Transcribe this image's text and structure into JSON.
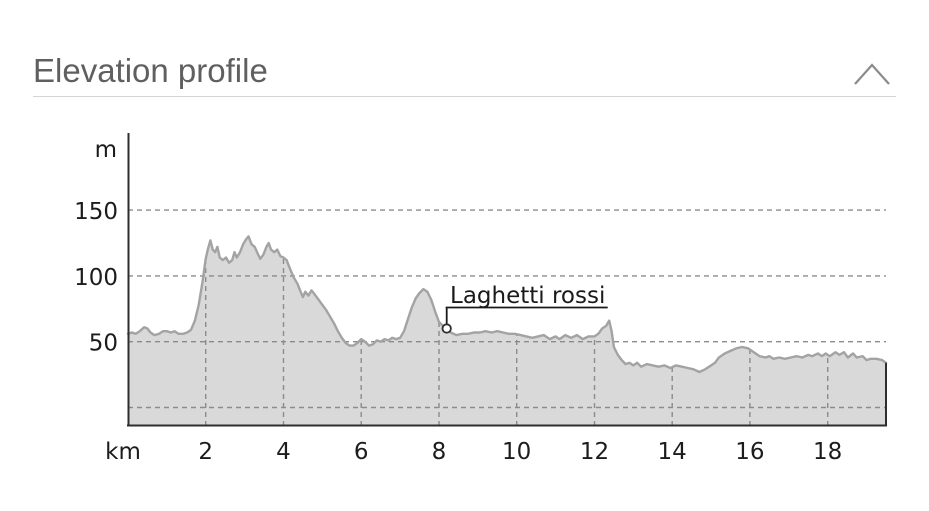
{
  "panel": {
    "title": "Elevation profile",
    "collapse_icon": "chevron-up"
  },
  "chart_data": {
    "type": "area",
    "title": "Elevation profile",
    "xlabel": "km",
    "ylabel": "m",
    "xlim": [
      0,
      19.5
    ],
    "ylim_m": [
      -14,
      208
    ],
    "x_ticks": [
      2,
      4,
      6,
      8,
      10,
      12,
      14,
      16,
      18
    ],
    "y_ticks": [
      50,
      100,
      150
    ],
    "grid": "dashed",
    "legend": "none",
    "annotation": {
      "label": "Laghetti rossi",
      "km": 8.2,
      "m": 60
    },
    "series": [
      {
        "name": "elevation",
        "points": [
          [
            0,
            56
          ],
          [
            0.1,
            57
          ],
          [
            0.2,
            56
          ],
          [
            0.3,
            58
          ],
          [
            0.42,
            61
          ],
          [
            0.5,
            60
          ],
          [
            0.58,
            57
          ],
          [
            0.68,
            55
          ],
          [
            0.8,
            56
          ],
          [
            0.9,
            58
          ],
          [
            1.0,
            58
          ],
          [
            1.1,
            57
          ],
          [
            1.2,
            58
          ],
          [
            1.3,
            56
          ],
          [
            1.42,
            56
          ],
          [
            1.52,
            57
          ],
          [
            1.62,
            59
          ],
          [
            1.72,
            66
          ],
          [
            1.82,
            78
          ],
          [
            1.92,
            96
          ],
          [
            2.0,
            113
          ],
          [
            2.06,
            121
          ],
          [
            2.12,
            127
          ],
          [
            2.18,
            120
          ],
          [
            2.24,
            118
          ],
          [
            2.3,
            122
          ],
          [
            2.36,
            114
          ],
          [
            2.44,
            112
          ],
          [
            2.52,
            114
          ],
          [
            2.6,
            110
          ],
          [
            2.68,
            112
          ],
          [
            2.74,
            118
          ],
          [
            2.8,
            114
          ],
          [
            2.88,
            118
          ],
          [
            2.96,
            124
          ],
          [
            3.04,
            128
          ],
          [
            3.1,
            130
          ],
          [
            3.18,
            124
          ],
          [
            3.26,
            122
          ],
          [
            3.32,
            118
          ],
          [
            3.4,
            113
          ],
          [
            3.48,
            116
          ],
          [
            3.56,
            122
          ],
          [
            3.62,
            125
          ],
          [
            3.68,
            120
          ],
          [
            3.76,
            118
          ],
          [
            3.84,
            120
          ],
          [
            3.92,
            115
          ],
          [
            4.0,
            114
          ],
          [
            4.08,
            112
          ],
          [
            4.16,
            106
          ],
          [
            4.26,
            99
          ],
          [
            4.36,
            94
          ],
          [
            4.44,
            88
          ],
          [
            4.5,
            84
          ],
          [
            4.56,
            88
          ],
          [
            4.64,
            85
          ],
          [
            4.72,
            89
          ],
          [
            4.8,
            86
          ],
          [
            4.9,
            82
          ],
          [
            5.0,
            78
          ],
          [
            5.1,
            74
          ],
          [
            5.2,
            69
          ],
          [
            5.3,
            64
          ],
          [
            5.4,
            58
          ],
          [
            5.5,
            53
          ],
          [
            5.6,
            49
          ],
          [
            5.7,
            47
          ],
          [
            5.8,
            47
          ],
          [
            5.9,
            49
          ],
          [
            6.0,
            52
          ],
          [
            6.1,
            50
          ],
          [
            6.2,
            47
          ],
          [
            6.3,
            48
          ],
          [
            6.4,
            51
          ],
          [
            6.5,
            50
          ],
          [
            6.6,
            52
          ],
          [
            6.7,
            51
          ],
          [
            6.8,
            53
          ],
          [
            6.9,
            52
          ],
          [
            7.0,
            53
          ],
          [
            7.1,
            58
          ],
          [
            7.2,
            67
          ],
          [
            7.3,
            76
          ],
          [
            7.4,
            83
          ],
          [
            7.5,
            87
          ],
          [
            7.6,
            90
          ],
          [
            7.7,
            88
          ],
          [
            7.8,
            82
          ],
          [
            7.9,
            73
          ],
          [
            8.0,
            65
          ],
          [
            8.1,
            62
          ],
          [
            8.2,
            60
          ],
          [
            8.3,
            57
          ],
          [
            8.45,
            55
          ],
          [
            8.6,
            56
          ],
          [
            8.75,
            56
          ],
          [
            8.9,
            57
          ],
          [
            9.05,
            57
          ],
          [
            9.2,
            58
          ],
          [
            9.35,
            57
          ],
          [
            9.5,
            58
          ],
          [
            9.65,
            57
          ],
          [
            9.8,
            56
          ],
          [
            9.95,
            56
          ],
          [
            10.1,
            55
          ],
          [
            10.25,
            54
          ],
          [
            10.4,
            53
          ],
          [
            10.55,
            54
          ],
          [
            10.7,
            55
          ],
          [
            10.85,
            52
          ],
          [
            11.0,
            54
          ],
          [
            11.1,
            52
          ],
          [
            11.25,
            55
          ],
          [
            11.4,
            53
          ],
          [
            11.55,
            55
          ],
          [
            11.7,
            52
          ],
          [
            11.85,
            54
          ],
          [
            12.0,
            54
          ],
          [
            12.1,
            56
          ],
          [
            12.2,
            60
          ],
          [
            12.3,
            62
          ],
          [
            12.38,
            66
          ],
          [
            12.44,
            58
          ],
          [
            12.5,
            46
          ],
          [
            12.6,
            40
          ],
          [
            12.7,
            36
          ],
          [
            12.8,
            33
          ],
          [
            12.9,
            34
          ],
          [
            13.0,
            32
          ],
          [
            13.1,
            34
          ],
          [
            13.2,
            31
          ],
          [
            13.35,
            33
          ],
          [
            13.5,
            32
          ],
          [
            13.65,
            31
          ],
          [
            13.8,
            32
          ],
          [
            13.95,
            30
          ],
          [
            14.1,
            32
          ],
          [
            14.25,
            31
          ],
          [
            14.4,
            30
          ],
          [
            14.55,
            29
          ],
          [
            14.7,
            27
          ],
          [
            14.85,
            29
          ],
          [
            15.0,
            32
          ],
          [
            15.1,
            34
          ],
          [
            15.2,
            38
          ],
          [
            15.35,
            41
          ],
          [
            15.5,
            43
          ],
          [
            15.65,
            45
          ],
          [
            15.8,
            46
          ],
          [
            15.95,
            45
          ],
          [
            16.1,
            42
          ],
          [
            16.25,
            39
          ],
          [
            16.4,
            38
          ],
          [
            16.5,
            39
          ],
          [
            16.6,
            37
          ],
          [
            16.75,
            38
          ],
          [
            16.9,
            37
          ],
          [
            17.05,
            38
          ],
          [
            17.2,
            39
          ],
          [
            17.35,
            38
          ],
          [
            17.5,
            40
          ],
          [
            17.6,
            39
          ],
          [
            17.75,
            41
          ],
          [
            17.85,
            39
          ],
          [
            17.95,
            41
          ],
          [
            18.05,
            39
          ],
          [
            18.2,
            42
          ],
          [
            18.3,
            40
          ],
          [
            18.42,
            42
          ],
          [
            18.52,
            38
          ],
          [
            18.65,
            41
          ],
          [
            18.75,
            38
          ],
          [
            18.9,
            39
          ],
          [
            19.0,
            36
          ],
          [
            19.1,
            37
          ],
          [
            19.25,
            37
          ],
          [
            19.4,
            36
          ],
          [
            19.5,
            34
          ]
        ]
      }
    ]
  },
  "colors": {
    "fill": "#d9d9d9",
    "profile_line": "#a3a3a3",
    "grid": "#8b8b8b",
    "axis": "#2e2e2e",
    "tick_text": "#1c1c1c",
    "title_text": "#5f5f5f",
    "divider": "#d4d4d4",
    "chevron": "#8a8a8a",
    "annotation_text": "#1a1a1a",
    "marker_fill": "#ffffff"
  }
}
